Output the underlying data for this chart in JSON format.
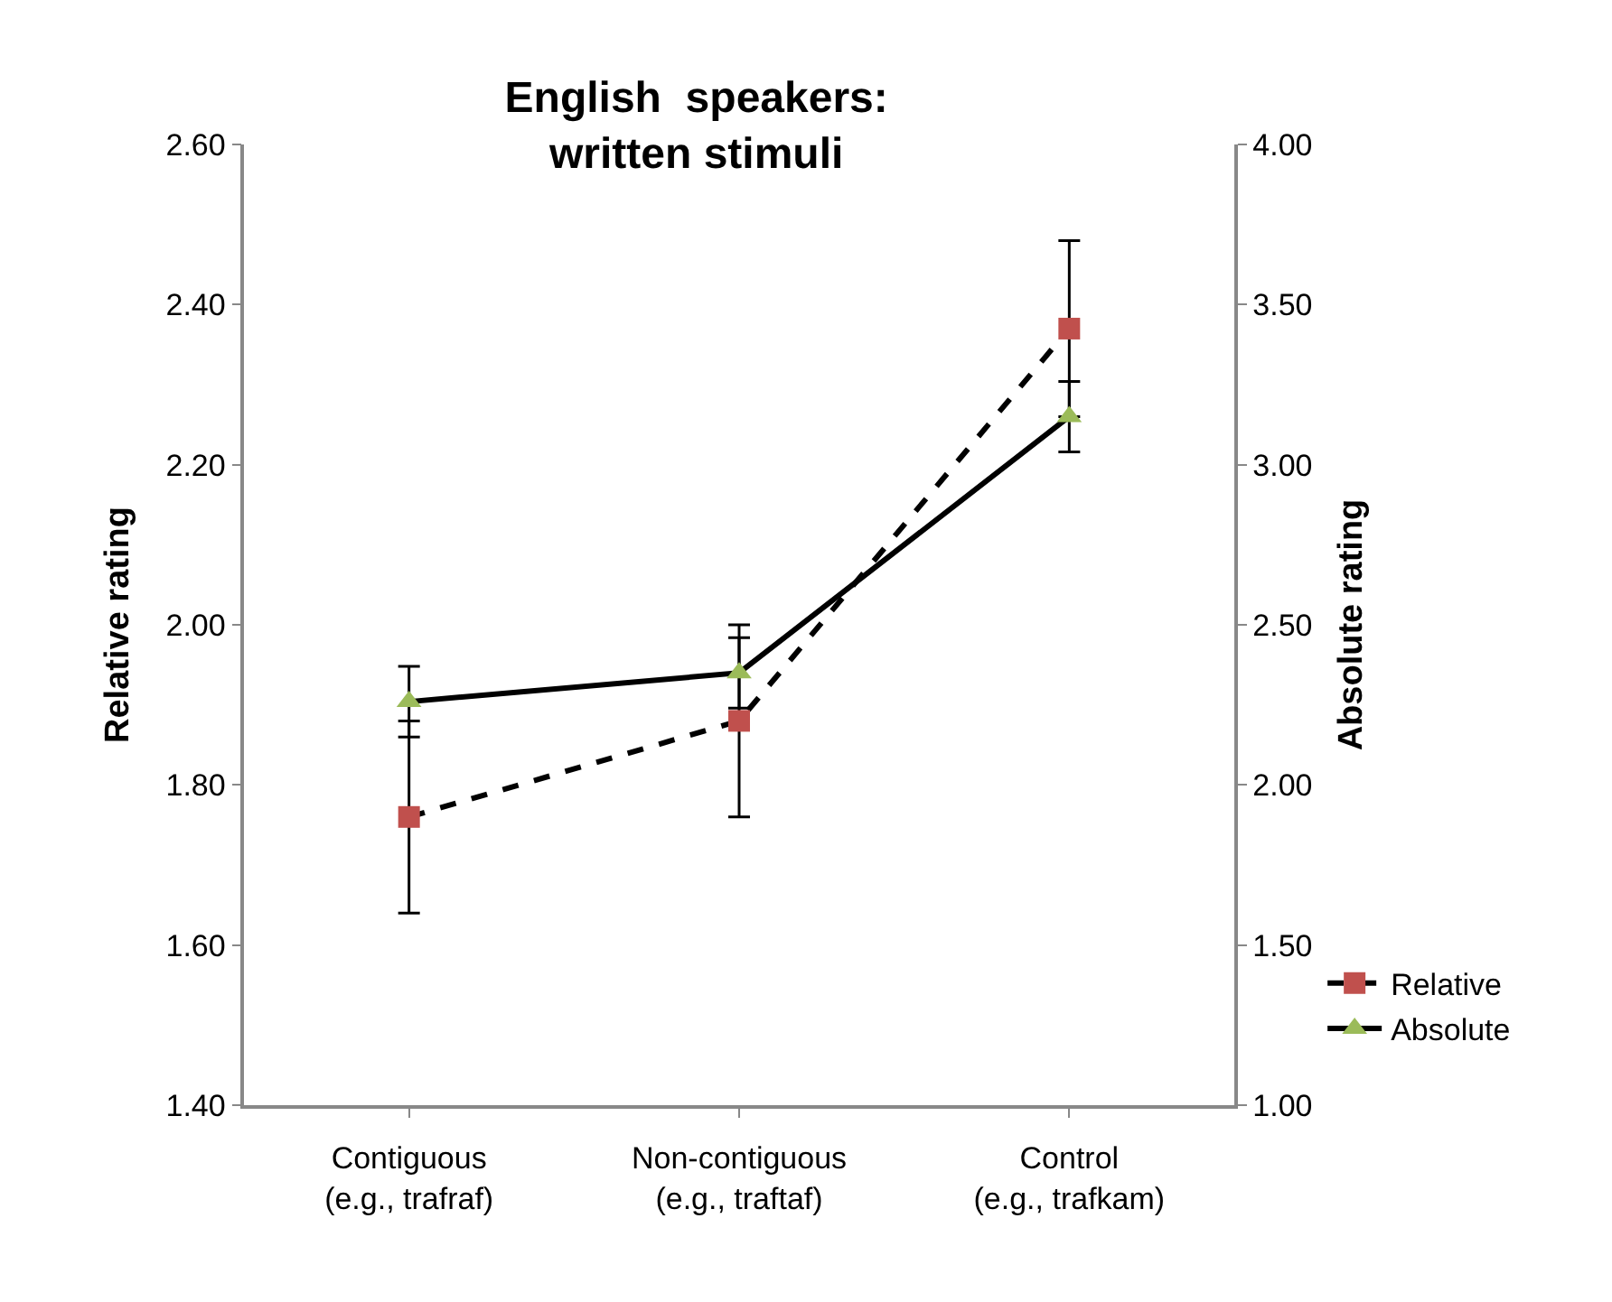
{
  "chart_data": {
    "type": "line",
    "title": "English  speakers:\nwritten stimuli",
    "categories": [
      "Contiguous\n(e.g., trafraf)",
      "Non-contiguous\n(e.g., traftaf)",
      "Control\n(e.g., trafkam)"
    ],
    "ylabel": "Relative rating",
    "y2label": "Absolute rating",
    "series": [
      {
        "name": "Relative",
        "color": "#c0504d",
        "values": [
          1.76,
          1.88,
          2.37
        ],
        "errors": [
          0.12,
          0.12,
          0.11
        ],
        "marker": "square",
        "line_style": "dashed"
      },
      {
        "name": "Absolute",
        "color": "#9bbb59",
        "values": [
          2.26,
          2.35,
          3.15
        ],
        "errors": [
          0.11,
          0.11,
          0.11
        ],
        "marker": "triangle",
        "line_style": "solid",
        "axis": "y2"
      }
    ],
    "ylim": [
      1.4,
      2.6
    ],
    "yticks": [
      {
        "value": 1.4,
        "label": "1.40"
      },
      {
        "value": 1.6,
        "label": "1.60"
      },
      {
        "value": 1.8,
        "label": "1.80"
      },
      {
        "value": 2.0,
        "label": "2.00"
      },
      {
        "value": 2.2,
        "label": "2.20"
      },
      {
        "value": 2.4,
        "label": "2.40"
      },
      {
        "value": 2.6,
        "label": "2.60"
      }
    ],
    "y2lim": [
      1.0,
      4.0
    ],
    "y2ticks": [
      {
        "value": 1.0,
        "label": "1.00"
      },
      {
        "value": 1.5,
        "label": "1.50"
      },
      {
        "value": 2.0,
        "label": "2.00"
      },
      {
        "value": 2.5,
        "label": "2.50"
      },
      {
        "value": 3.0,
        "label": "3.00"
      },
      {
        "value": 3.5,
        "label": "3.50"
      },
      {
        "value": 4.0,
        "label": "4.00"
      }
    ],
    "legend": "bottom right"
  }
}
